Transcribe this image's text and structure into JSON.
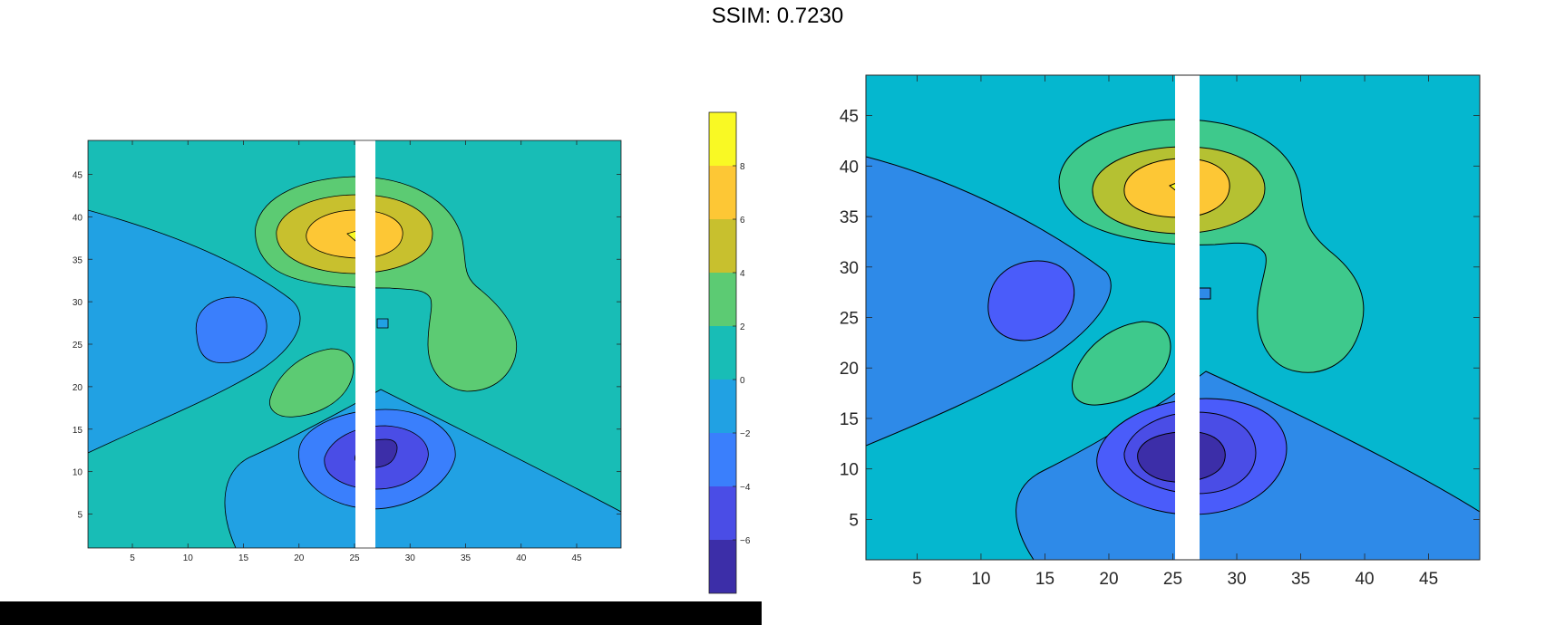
{
  "title": "SSIM: 0.7230",
  "chart_data": [
    {
      "type": "contour",
      "panel": "left",
      "xlim": [
        1,
        49
      ],
      "ylim": [
        1,
        49
      ],
      "xticks": [
        5,
        10,
        15,
        20,
        25,
        30,
        35,
        40,
        45
      ],
      "yticks": [
        5,
        10,
        15,
        20,
        25,
        30,
        35,
        40,
        45
      ],
      "colorbar": {
        "ticks": [
          -6,
          -4,
          -2,
          0,
          2,
          4,
          6,
          8
        ],
        "levels": [
          -8,
          -6,
          -4,
          -2,
          0,
          2,
          4,
          6,
          8,
          10
        ],
        "colors": [
          "#3c2ea8",
          "#4a4de6",
          "#3a7ffc",
          "#21a1e3",
          "#18bdb6",
          "#5ccb73",
          "#c8c02e",
          "#fdc735",
          "#f9f924"
        ]
      },
      "masked_columns_x": [
        25,
        27
      ]
    },
    {
      "type": "contour",
      "panel": "right",
      "xlim": [
        1,
        49
      ],
      "ylim": [
        1,
        49
      ],
      "xticks": [
        5,
        10,
        15,
        20,
        25,
        30,
        35,
        40,
        45
      ],
      "yticks": [
        5,
        10,
        15,
        20,
        25,
        30,
        35,
        40,
        45
      ],
      "colors": [
        "#3c2ea8",
        "#4a4de6",
        "#4a5cfa",
        "#2e8ae8",
        "#05b7cf",
        "#3ec98c",
        "#b5c132",
        "#fdc735",
        "#f9f924"
      ],
      "masked_columns_x": [
        25,
        27
      ]
    }
  ]
}
